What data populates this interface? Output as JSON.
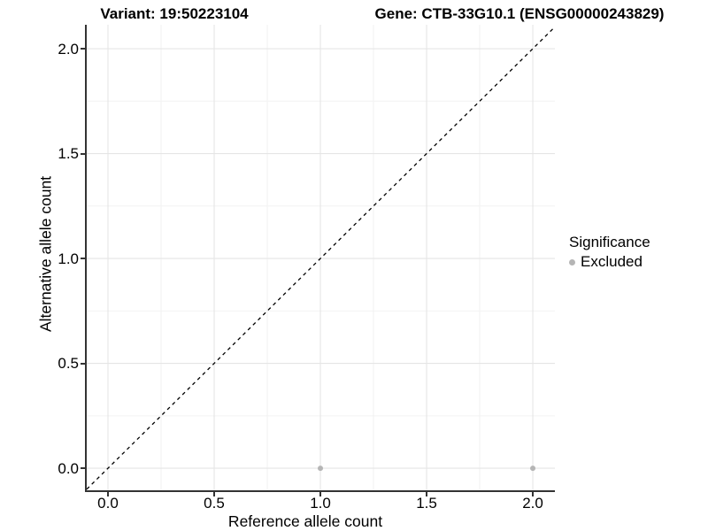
{
  "chart_data": {
    "type": "scatter",
    "title_left": "Variant: 19:50223104",
    "title_right": "Gene: CTB-33G10.1 (ENSG00000243829)",
    "xlabel": "Reference allele count",
    "ylabel": "Alternative allele count",
    "xlim": [
      -0.1,
      2.104
    ],
    "ylim": [
      -0.105,
      2.114
    ],
    "x_ticks": [
      0.0,
      0.5,
      1.0,
      1.5,
      2.0
    ],
    "x_tick_labels": [
      "0.0",
      "0.5",
      "1.0",
      "1.5",
      "2.0"
    ],
    "y_ticks": [
      0.0,
      0.5,
      1.0,
      1.5,
      2.0
    ],
    "y_tick_labels": [
      "0.0",
      "0.5",
      "1.0",
      "1.5",
      "2.0"
    ],
    "x_minor_ticks": [
      0.25,
      0.75,
      1.25,
      1.75
    ],
    "y_minor_ticks": [
      0.25,
      0.75,
      1.25,
      1.75
    ],
    "grid": true,
    "series": [
      {
        "name": "Excluded",
        "color": "#b5b5b5",
        "points": [
          {
            "x": 1.0,
            "y": 0.0
          },
          {
            "x": 2.0,
            "y": 0.0
          }
        ]
      }
    ],
    "reference_line": {
      "style": "dashed",
      "slope": 1,
      "intercept": 0,
      "color": "#000000"
    },
    "legend": {
      "title": "Significance",
      "position": "right",
      "entries": [
        {
          "label": "Excluded",
          "color": "#b5b5b5"
        }
      ]
    }
  },
  "colors": {
    "background": "#ffffff",
    "grid_major": "#e5e5e5",
    "grid_minor": "#f2f2f2",
    "axis_line": "#333333",
    "tick": "#333333",
    "text": "#000000",
    "point": "#b5b5b5"
  }
}
